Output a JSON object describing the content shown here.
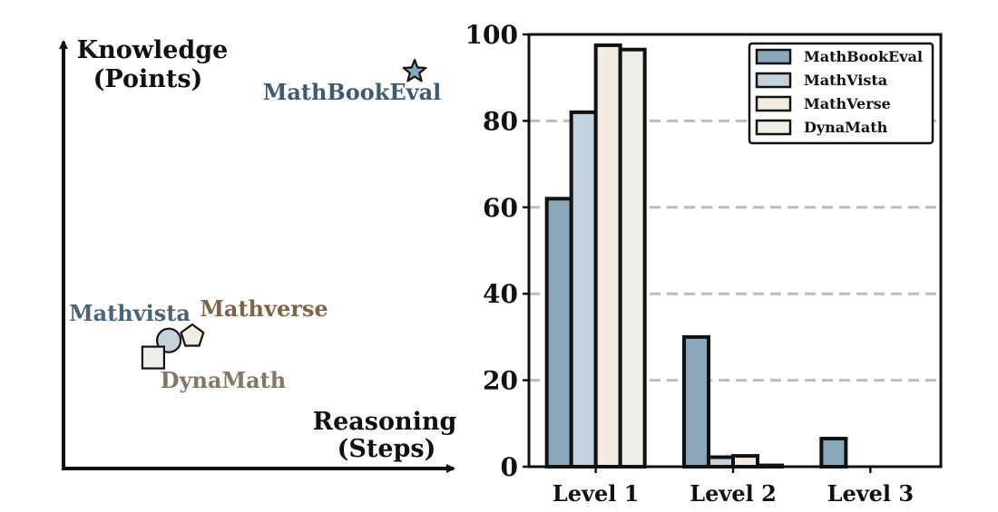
{
  "colors": {
    "mathbookeval": "#8aa7bb",
    "mathvista": "#c3d2dc",
    "mathverse": "#f1ecdf",
    "dynamath": "#eeeee4",
    "mathbookeval_label": "#3d5a70",
    "mathvista_label": "#4b6378",
    "mathverse_label": "#7c6548",
    "dynamath_label": "#857564",
    "outline": "#111111",
    "grid": "#bbbbbb"
  },
  "chart_data": [
    {
      "type": "scatter",
      "ylabel_line1": "Knowledge",
      "ylabel_line2": "(Points)",
      "xlabel_line1": "Reasoning",
      "xlabel_line2": "(Steps)",
      "xlim": [
        0,
        10
      ],
      "ylim": [
        0,
        10
      ],
      "points": [
        {
          "name": "MathBookEval",
          "marker": "star",
          "color_key": "mathbookeval",
          "label_color_key": "mathbookeval_label",
          "x": 9.0,
          "y": 9.3
        },
        {
          "name": "Mathvista",
          "marker": "circle",
          "color_key": "mathvista",
          "label_color_key": "mathvista_label",
          "x": 2.7,
          "y": 3.0
        },
        {
          "name": "Mathverse",
          "marker": "pentagon",
          "color_key": "mathverse",
          "label_color_key": "mathverse_label",
          "x": 3.3,
          "y": 3.1
        },
        {
          "name": "DynaMath",
          "marker": "square",
          "color_key": "dynamath",
          "label_color_key": "dynamath_label",
          "x": 2.3,
          "y": 2.6
        }
      ]
    },
    {
      "type": "bar",
      "categories": [
        "Level 1",
        "Level 2",
        "Level 3"
      ],
      "series": [
        {
          "name": "MathBookEval",
          "color_key": "mathbookeval",
          "values": [
            62,
            30,
            6.5
          ]
        },
        {
          "name": "MathVista",
          "color_key": "mathvista",
          "values": [
            82,
            2.2,
            0
          ]
        },
        {
          "name": "MathVerse",
          "color_key": "mathverse",
          "values": [
            97.5,
            2.5,
            0
          ]
        },
        {
          "name": "DynaMath",
          "color_key": "dynamath",
          "values": [
            96.5,
            0.3,
            0
          ]
        }
      ],
      "ylim": [
        0,
        100
      ],
      "yticks": [
        0,
        20,
        40,
        60,
        80,
        100
      ],
      "grid": true,
      "legend_position": "top-right"
    }
  ]
}
